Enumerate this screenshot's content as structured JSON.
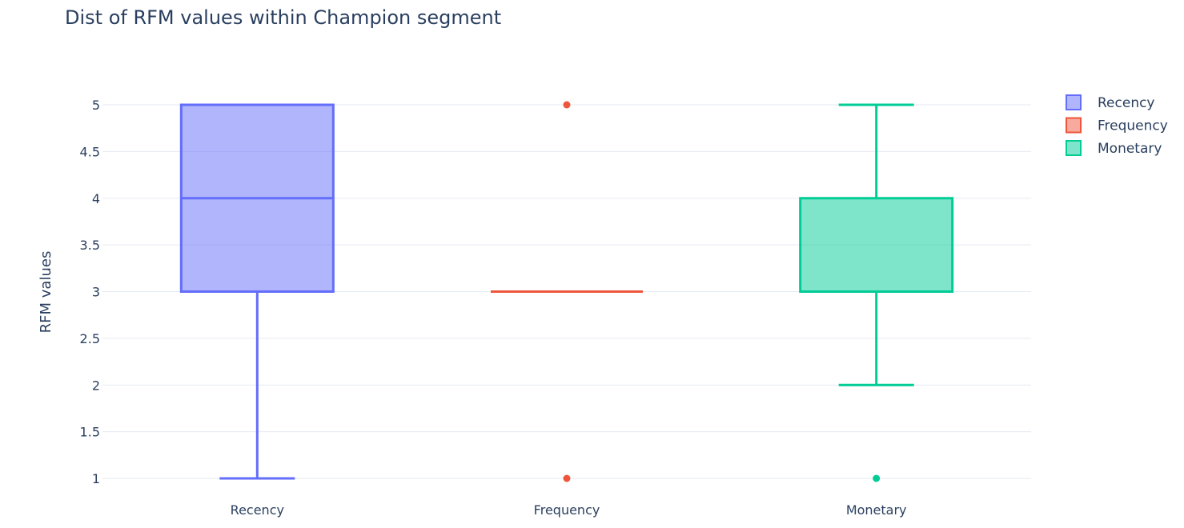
{
  "chart_data": {
    "type": "box",
    "title": "Dist of RFM values within Champion segment",
    "xlabel": "",
    "ylabel": "RFM values",
    "ylim": [
      0.9,
      5.35
    ],
    "yticks": [
      1,
      1.5,
      2,
      2.5,
      3,
      3.5,
      4,
      4.5,
      5
    ],
    "ytick_labels": [
      "1",
      "1.5",
      "2",
      "2.5",
      "3",
      "3.5",
      "4",
      "4.5",
      "5"
    ],
    "categories": [
      "Recency",
      "Frequency",
      "Monetary"
    ],
    "grid": true,
    "legend_position": "top-right",
    "series": [
      {
        "name": "Recency",
        "color": "#636efa",
        "q1": 3,
        "median": 4,
        "q3": 5,
        "lowerfence": 1,
        "upperfence": 5,
        "outliers": []
      },
      {
        "name": "Frequency",
        "color": "#ef553b",
        "q1": 3,
        "median": 3,
        "q3": 3,
        "lowerfence": 3,
        "upperfence": 3,
        "outliers": [
          1,
          5
        ]
      },
      {
        "name": "Monetary",
        "color": "#00cc96",
        "q1": 3,
        "median": 3,
        "q3": 4,
        "lowerfence": 2,
        "upperfence": 5,
        "outliers": [
          1
        ]
      }
    ]
  }
}
